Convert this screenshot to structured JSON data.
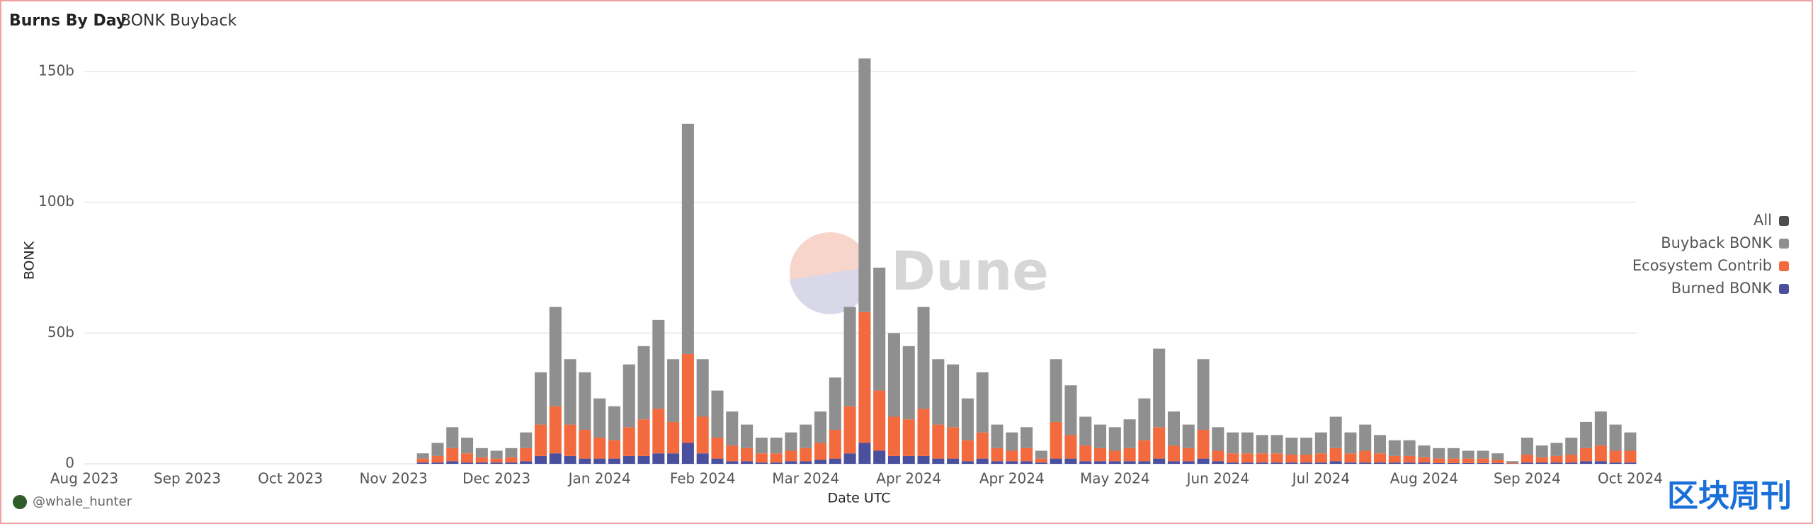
{
  "header": {
    "title": "Burns By Day",
    "subtitle": "BONK Buyback"
  },
  "footer": {
    "author": "@whale_hunter"
  },
  "watermark": "Dune",
  "corner_logo": "区块周刊",
  "chart_data": {
    "type": "stacked_bar",
    "x_label": "Date UTC",
    "y_label": "BONK",
    "legend_all": {
      "name": "All",
      "color": "#4d4d4d"
    },
    "legend_position": "right",
    "grid": true,
    "ylim": [
      0,
      160000000000.0
    ],
    "yticks": [
      0,
      {
        "value": 50000000000.0,
        "label": "50b"
      },
      {
        "value": 100000000000.0,
        "label": "100b"
      },
      {
        "value": 150000000000.0,
        "label": "150b"
      }
    ],
    "categories": [
      "Aug 2023",
      null,
      null,
      null,
      null,
      null,
      null,
      "Sep 2023",
      null,
      null,
      null,
      null,
      null,
      null,
      "Oct 2023",
      null,
      null,
      null,
      null,
      null,
      null,
      "Nov 2023",
      null,
      null,
      null,
      null,
      null,
      null,
      "Dec 2023",
      null,
      null,
      null,
      null,
      null,
      null,
      "Jan 2024",
      null,
      null,
      null,
      null,
      null,
      null,
      "Feb 2024",
      null,
      null,
      null,
      null,
      null,
      null,
      "Mar 2024",
      null,
      null,
      null,
      null,
      null,
      null,
      "Apr 2024",
      null,
      null,
      null,
      null,
      null,
      null,
      "Apr 2024",
      null,
      null,
      null,
      null,
      null,
      null,
      "May 2024",
      null,
      null,
      null,
      null,
      null,
      null,
      "Jun 2024",
      null,
      null,
      null,
      null,
      null,
      null,
      "Jul 2024",
      null,
      null,
      null,
      null,
      null,
      null,
      "Aug 2024",
      null,
      null,
      null,
      null,
      null,
      null,
      "Sep 2024",
      null,
      null,
      null,
      null,
      null,
      null,
      "Oct 2024"
    ],
    "series": [
      {
        "name": "Buyback BONK",
        "color": "#8f8f8f",
        "values": [
          0,
          0,
          0,
          0,
          0,
          0,
          0,
          0,
          0,
          0,
          0,
          0,
          0,
          0,
          0,
          0,
          0,
          0,
          0,
          0,
          0,
          0,
          0,
          2000000000.0,
          5000000000.0,
          8000000000.0,
          6000000000.0,
          3500000000.0,
          3000000000.0,
          3500000000.0,
          6000000000.0,
          20000000000.0,
          38000000000.0,
          25000000000.0,
          22000000000.0,
          15000000000.0,
          13000000000.0,
          24000000000.0,
          28000000000.0,
          34000000000.0,
          24000000000.0,
          88000000000.0,
          22000000000.0,
          18000000000.0,
          13000000000.0,
          9000000000.0,
          6000000000.0,
          6000000000.0,
          7000000000.0,
          9000000000.0,
          12000000000.0,
          20000000000.0,
          38000000000.0,
          97000000000.0,
          47000000000.0,
          32000000000.0,
          28000000000.0,
          39000000000.0,
          25000000000.0,
          24000000000.0,
          16000000000.0,
          23000000000.0,
          9000000000.0,
          7000000000.0,
          8000000000.0,
          3000000000.0,
          24000000000.0,
          19000000000.0,
          11000000000.0,
          9000000000.0,
          9000000000.0,
          11000000000.0,
          16000000000.0,
          30000000000.0,
          13000000000.0,
          9000000000.0,
          27000000000.0,
          9000000000.0,
          8000000000.0,
          8000000000.0,
          7000000000.0,
          7000000000.0,
          6500000000.0,
          6500000000.0,
          8000000000.0,
          12000000000.0,
          8000000000.0,
          10000000000.0,
          7000000000.0,
          6000000000.0,
          6000000000.0,
          4500000000.0,
          4000000000.0,
          4000000000.0,
          3000000000.0,
          3000000000.0,
          2500000000.0,
          600000000.0,
          6500000000.0,
          4500000000.0,
          5000000000.0,
          6500000000.0,
          10000000000.0,
          13000000000.0,
          10000000000.0,
          7000000000.0
        ]
      },
      {
        "name": "Ecosystem Contrib",
        "color": "#f26a3d",
        "values": [
          0,
          0,
          0,
          0,
          0,
          0,
          0,
          0,
          0,
          0,
          0,
          0,
          0,
          0,
          0,
          0,
          0,
          0,
          0,
          0,
          0,
          0,
          0,
          1500000000.0,
          2500000000.0,
          5000000000.0,
          3500000000.0,
          2000000000.0,
          1500000000.0,
          2000000000.0,
          5000000000.0,
          12000000000.0,
          18000000000.0,
          12000000000.0,
          11000000000.0,
          8000000000.0,
          7000000000.0,
          11000000000.0,
          14000000000.0,
          17000000000.0,
          12000000000.0,
          34000000000.0,
          14000000000.0,
          8000000000.0,
          6000000000.0,
          5000000000.0,
          3500000000.0,
          3500000000.0,
          4000000000.0,
          5000000000.0,
          6500000000.0,
          11000000000.0,
          18000000000.0,
          50000000000.0,
          23000000000.0,
          15000000000.0,
          14000000000.0,
          18000000000.0,
          13000000000.0,
          12000000000.0,
          8000000000.0,
          10000000000.0,
          5000000000.0,
          4000000000.0,
          5000000000.0,
          1500000000.0,
          14000000000.0,
          9000000000.0,
          6000000000.0,
          5000000000.0,
          4000000000.0,
          5000000000.0,
          8000000000.0,
          12000000000.0,
          6000000000.0,
          5000000000.0,
          11000000000.0,
          4000000000.0,
          3500000000.0,
          3500000000.0,
          3500000000.0,
          3500000000.0,
          3000000000.0,
          3000000000.0,
          3500000000.0,
          5000000000.0,
          3500000000.0,
          4500000000.0,
          3500000000.0,
          2500000000.0,
          2500000000.0,
          2000000000.0,
          1700000000.0,
          1700000000.0,
          1700000000.0,
          1700000000.0,
          1200000000.0,
          300000000.0,
          3000000000.0,
          2000000000.0,
          2500000000.0,
          3000000000.0,
          5000000000.0,
          6000000000.0,
          4500000000.0,
          4500000000.0
        ]
      },
      {
        "name": "Burned BONK",
        "color": "#4a4f9e",
        "values": [
          0,
          0,
          0,
          0,
          0,
          0,
          0,
          0,
          0,
          0,
          0,
          0,
          0,
          0,
          0,
          0,
          0,
          0,
          0,
          0,
          0,
          0,
          0,
          500000000.0,
          500000000.0,
          1000000000.0,
          500000000.0,
          500000000.0,
          500000000.0,
          500000000.0,
          1000000000.0,
          3000000000.0,
          4000000000.0,
          3000000000.0,
          2000000000.0,
          2000000000.0,
          2000000000.0,
          3000000000.0,
          3000000000.0,
          4000000000.0,
          4000000000.0,
          8000000000.0,
          4000000000.0,
          2000000000.0,
          1000000000.0,
          1000000000.0,
          500000000.0,
          500000000.0,
          1000000000.0,
          1000000000.0,
          1500000000.0,
          2000000000.0,
          4000000000.0,
          8000000000.0,
          5000000000.0,
          3000000000.0,
          3000000000.0,
          3000000000.0,
          2000000000.0,
          2000000000.0,
          1000000000.0,
          2000000000.0,
          1000000000.0,
          1000000000.0,
          1000000000.0,
          500000000.0,
          2000000000.0,
          2000000000.0,
          1000000000.0,
          1000000000.0,
          1000000000.0,
          1000000000.0,
          1000000000.0,
          2000000000.0,
          1000000000.0,
          1000000000.0,
          2000000000.0,
          1000000000.0,
          500000000.0,
          500000000.0,
          500000000.0,
          500000000.0,
          500000000.0,
          500000000.0,
          500000000.0,
          1000000000.0,
          500000000.0,
          500000000.0,
          500000000.0,
          500000000.0,
          500000000.0,
          500000000.0,
          300000000.0,
          300000000.0,
          300000000.0,
          300000000.0,
          300000000.0,
          100000000.0,
          500000000.0,
          500000000.0,
          500000000.0,
          500000000.0,
          1000000000.0,
          1000000000.0,
          500000000.0,
          500000000.0
        ]
      }
    ]
  }
}
